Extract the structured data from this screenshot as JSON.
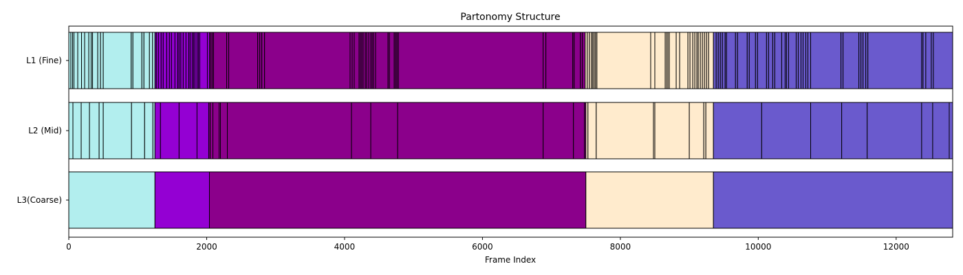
{
  "chart_data": {
    "type": "bar",
    "orientation": "horizontal-stacked-segments",
    "title": "Partonomy Structure",
    "xlabel": "Frame Index",
    "ylabel": "",
    "xlim": [
      0,
      12820
    ],
    "xticks": [
      0,
      2000,
      4000,
      6000,
      8000,
      10000,
      12000
    ],
    "grid": false,
    "rows": [
      {
        "label": "L1 (Fine)",
        "boundaries": [
          0,
          30,
          55,
          75,
          130,
          185,
          230,
          290,
          325,
          345,
          420,
          460,
          500,
          905,
          930,
          1060,
          1090,
          1170,
          1215,
          1250,
          1270,
          1300,
          1340,
          1370,
          1420,
          1460,
          1490,
          1540,
          1580,
          1600,
          1625,
          1660,
          1700,
          1740,
          1760,
          1790,
          1810,
          1830,
          1860,
          1880,
          1900,
          2010,
          2040,
          2060,
          2080,
          2100,
          2290,
          2320,
          2740,
          2770,
          2800,
          2840,
          4080,
          4110,
          4140,
          4210,
          4230,
          4250,
          4270,
          4300,
          4320,
          4350,
          4380,
          4400,
          4420,
          4450,
          4630,
          4650,
          4720,
          4740,
          4760,
          4780,
          6880,
          6920,
          7310,
          7330,
          7420,
          7450,
          7490,
          7520,
          7550,
          7580,
          7600,
          7620,
          7640,
          7660,
          8440,
          8500,
          8650,
          8670,
          8690,
          8710,
          8810,
          8860,
          8980,
          9010,
          9050,
          9080,
          9110,
          9130,
          9160,
          9190,
          9220,
          9250,
          9280,
          9350,
          9390,
          9420,
          9450,
          9480,
          9520,
          9540,
          9670,
          9700,
          9840,
          9870,
          9960,
          9990,
          10120,
          10150,
          10210,
          10240,
          10340,
          10390,
          10410,
          10440,
          10550,
          10580,
          10620,
          10650,
          10690,
          10720,
          10760,
          11200,
          11230,
          11460,
          11490,
          11520,
          11560,
          11590,
          12370,
          12390,
          12430,
          12510,
          12540,
          12820
        ],
        "groups": [
          {
            "until": 1250,
            "color": "#B2EEEE"
          },
          {
            "until": 2040,
            "color": "#9400D3"
          },
          {
            "until": 7500,
            "color": "#8B008B"
          },
          {
            "until": 9350,
            "color": "#FFEBCD"
          },
          {
            "until": 12820,
            "color": "#6A5ACD"
          }
        ]
      },
      {
        "label": "L2 (Mid)",
        "boundaries": [
          0,
          60,
          180,
          300,
          440,
          500,
          910,
          1100,
          1220,
          1250,
          1330,
          1600,
          1860,
          2030,
          2050,
          2090,
          2180,
          2200,
          2300,
          4100,
          4380,
          4770,
          6880,
          7320,
          7480,
          7500,
          7530,
          7650,
          8480,
          8500,
          9000,
          9210,
          9240,
          9350,
          10050,
          10760,
          11210,
          11580,
          12370,
          12530,
          12770,
          12820
        ],
        "groups": [
          {
            "until": 1250,
            "color": "#B2EEEE"
          },
          {
            "until": 2040,
            "color": "#9400D3"
          },
          {
            "until": 7500,
            "color": "#8B008B"
          },
          {
            "until": 9350,
            "color": "#FFEBCD"
          },
          {
            "until": 12820,
            "color": "#6A5ACD"
          }
        ]
      },
      {
        "label": "L3(Coarse)",
        "boundaries": [
          0,
          1250,
          2040,
          7500,
          9350,
          12820
        ],
        "groups": [
          {
            "until": 1250,
            "color": "#B2EEEE"
          },
          {
            "until": 2040,
            "color": "#9400D3"
          },
          {
            "until": 7500,
            "color": "#8B008B"
          },
          {
            "until": 9350,
            "color": "#FFEBCD"
          },
          {
            "until": 12820,
            "color": "#6A5ACD"
          }
        ]
      }
    ]
  }
}
